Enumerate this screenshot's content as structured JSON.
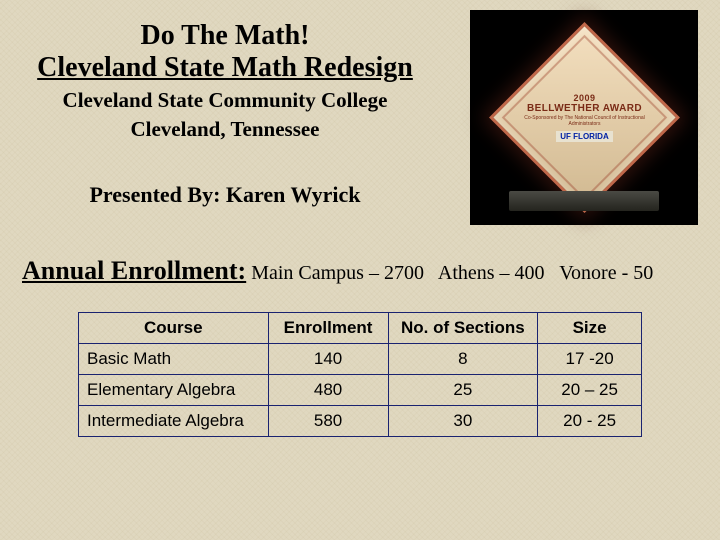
{
  "header": {
    "title_line1": "Do The Math!",
    "title_line2": "Cleveland State Math Redesign",
    "subtitle_line1": "Cleveland State Community College",
    "subtitle_line2": "Cleveland, Tennessee",
    "presented_by": "Presented By: Karen Wyrick"
  },
  "award": {
    "year": "2009",
    "main": "BELLWETHER AWARD",
    "sub": "Co-Sponsored by The National Council of Instructional Administrators",
    "uf": "UF FLORIDA"
  },
  "enrollment_line": {
    "heading": "Annual Enrollment:",
    "campuses": [
      {
        "label": "Main Campus – 2700"
      },
      {
        "label": "Athens – 400"
      },
      {
        "label": "Vonore - 50"
      }
    ]
  },
  "table": {
    "columns": [
      "Course",
      "Enrollment",
      "No. of Sections",
      "Size"
    ],
    "rows": [
      [
        "Basic Math",
        "140",
        "8",
        "17 -20"
      ],
      [
        "Elementary Algebra",
        "480",
        "25",
        "20 – 25"
      ],
      [
        "Intermediate Algebra",
        "580",
        "30",
        "20 - 25"
      ]
    ],
    "border_color": "#1a2370",
    "header_fontsize": 17,
    "cell_fontsize": 17
  },
  "background_color": "#e0d8c0"
}
